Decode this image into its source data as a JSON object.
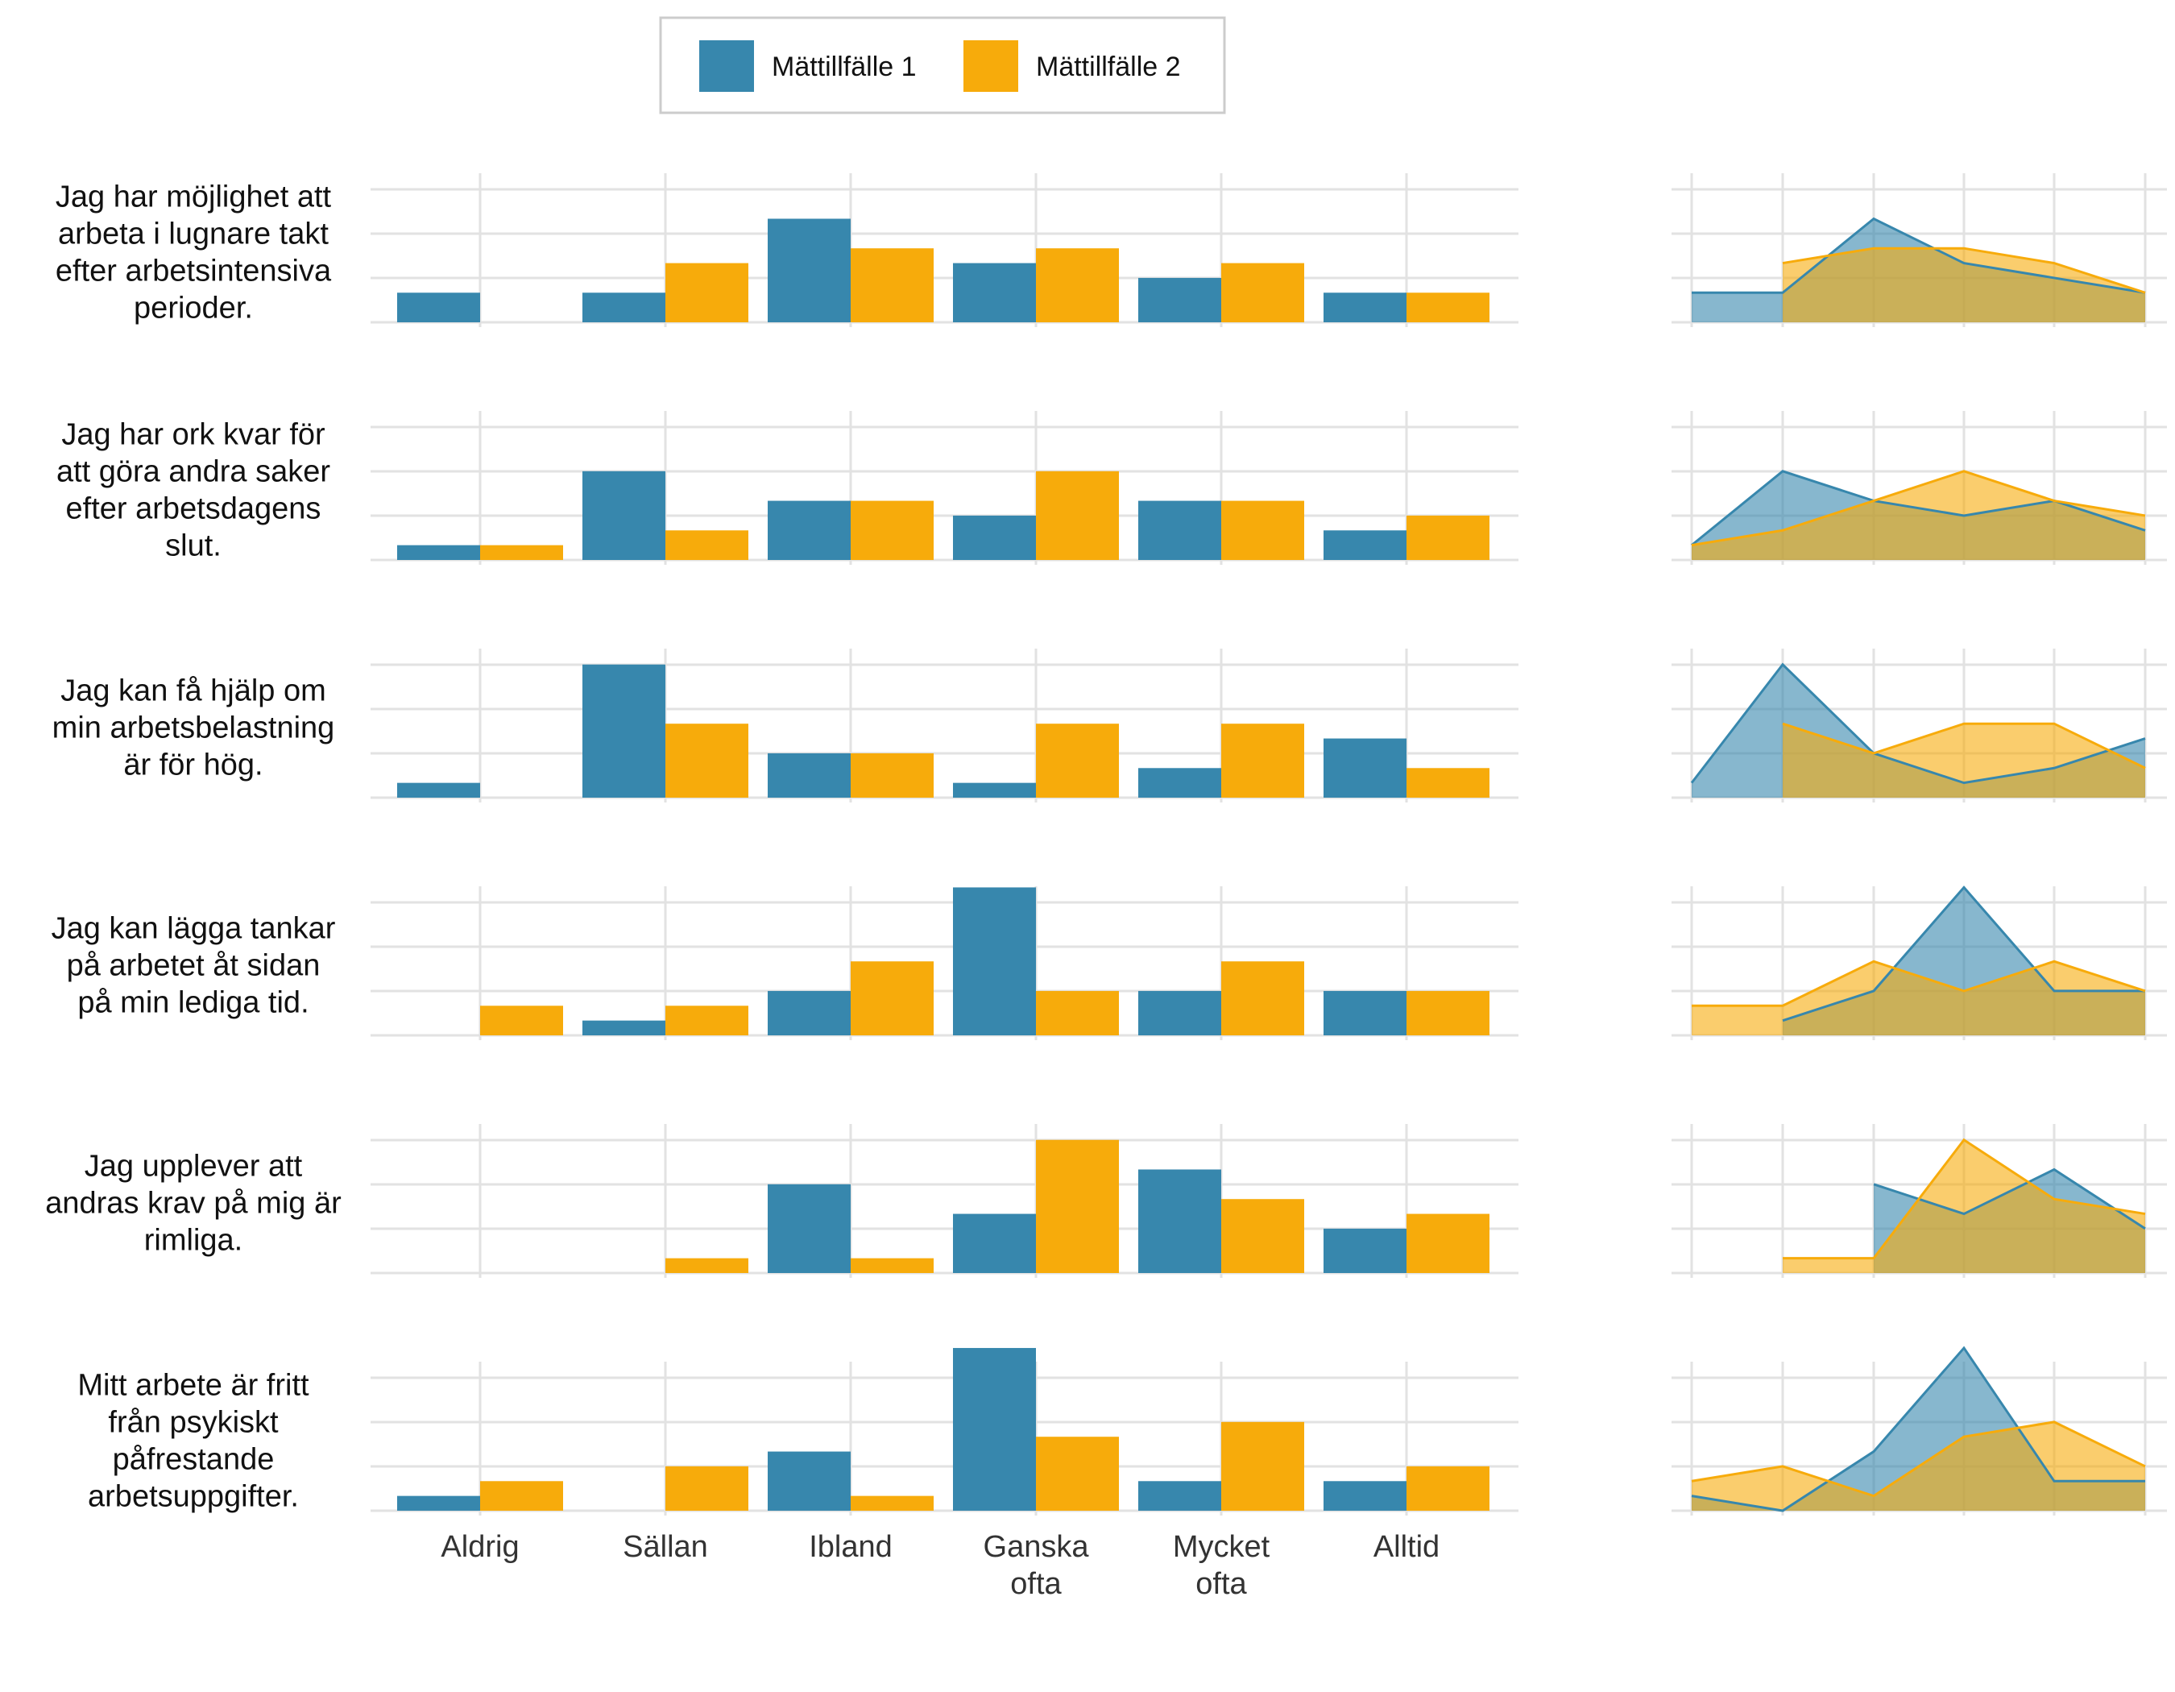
{
  "chart_data": {
    "type": "bar",
    "legend": {
      "placement": "top-center",
      "entries": [
        {
          "name": "Mättillfälle 1",
          "color": "#3787ad"
        },
        {
          "name": "Mättillfälle 2",
          "color": "#f7ab0b"
        }
      ]
    },
    "categories": [
      "Aldrig",
      "Sällan",
      "Ibland",
      "Ganska ofta",
      "Mycket ofta",
      "Alltid"
    ],
    "category_label_lines": [
      [
        "Aldrig"
      ],
      [
        "Sällan"
      ],
      [
        "Ibland"
      ],
      [
        "Ganska",
        "ofta"
      ],
      [
        "Mycket",
        "ofta"
      ],
      [
        "Alltid"
      ]
    ],
    "ylim": [
      0,
      22
    ],
    "grid": true,
    "colors": {
      "series1": "#3787ad",
      "series2": "#f7ab0b",
      "overlap": "#c9a94e",
      "grid": "#e2e2e2"
    },
    "panels": [
      {
        "question": "Jag har möjlighet att arbeta i lugnare takt efter arbetsintensiva perioder.",
        "question_lines": [
          "Jag har möjlighet att",
          "arbeta i lugnare takt",
          "efter arbetsintensiva",
          "perioder."
        ],
        "series": [
          {
            "name": "Mättillfälle 1",
            "values": [
              4,
              4,
              14,
              8,
              6,
              4
            ]
          },
          {
            "name": "Mättillfälle 2",
            "values": [
              0,
              8,
              10,
              10,
              8,
              4
            ]
          }
        ]
      },
      {
        "question": "Jag har ork kvar för att göra andra saker efter arbetsdagens slut.",
        "question_lines": [
          "Jag har ork kvar för",
          "att göra andra saker",
          "efter arbetsdagens",
          "slut."
        ],
        "series": [
          {
            "name": "Mättillfälle 1",
            "values": [
              2,
              12,
              8,
              6,
              8,
              4
            ]
          },
          {
            "name": "Mättillfälle 2",
            "values": [
              2,
              4,
              8,
              12,
              8,
              6
            ]
          }
        ]
      },
      {
        "question": "Jag kan få hjälp om min arbetsbelastning är för hög.",
        "question_lines": [
          "Jag kan få hjälp om",
          "min arbetsbelastning",
          "är för hög."
        ],
        "series": [
          {
            "name": "Mättillfälle 1",
            "values": [
              2,
              18,
              6,
              2,
              4,
              8
            ]
          },
          {
            "name": "Mättillfälle 2",
            "values": [
              0,
              10,
              6,
              10,
              10,
              4
            ]
          }
        ]
      },
      {
        "question": "Jag kan lägga tankar på arbetet åt sidan på min lediga tid.",
        "question_lines": [
          "Jag kan lägga tankar",
          "på arbetet åt sidan",
          "på min lediga tid."
        ],
        "series": [
          {
            "name": "Mättillfälle 1",
            "values": [
              0,
              2,
              6,
              20,
              6,
              6
            ]
          },
          {
            "name": "Mättillfälle 2",
            "values": [
              4,
              4,
              10,
              6,
              10,
              6
            ]
          }
        ]
      },
      {
        "question": "Jag upplever att andras krav på mig är rimliga.",
        "question_lines": [
          "Jag upplever att",
          "andras krav på mig är",
          "rimliga."
        ],
        "series": [
          {
            "name": "Mättillfälle 1",
            "values": [
              0,
              0,
              12,
              8,
              14,
              6
            ]
          },
          {
            "name": "Mättillfälle 2",
            "values": [
              0,
              2,
              2,
              18,
              10,
              8
            ]
          }
        ]
      },
      {
        "question": "Mitt arbete är fritt från psykiskt påfrestande arbetsuppgifter.",
        "question_lines": [
          "Mitt arbete är fritt",
          "från psykiskt",
          "påfrestande",
          "arbetsuppgifter."
        ],
        "series": [
          {
            "name": "Mättillfälle 1",
            "values": [
              2,
              0,
              8,
              22,
              4,
              4
            ]
          },
          {
            "name": "Mättillfälle 2",
            "values": [
              4,
              6,
              2,
              10,
              12,
              6
            ]
          }
        ]
      }
    ]
  }
}
